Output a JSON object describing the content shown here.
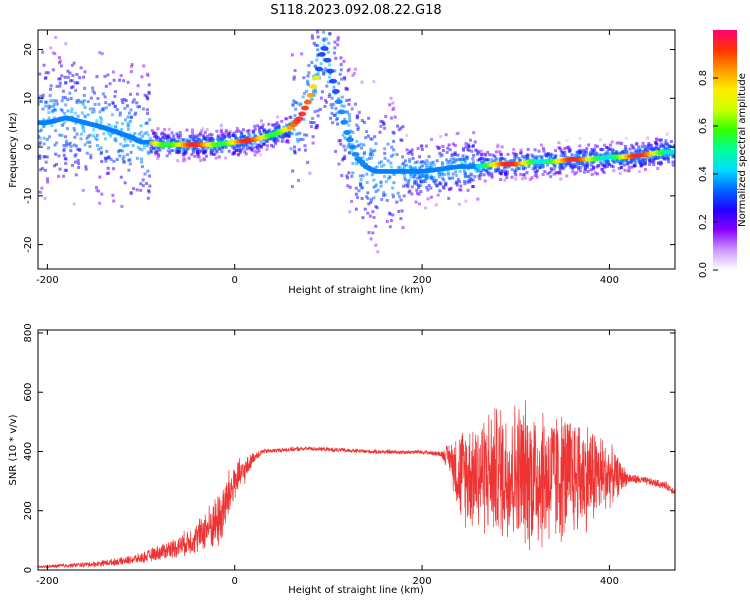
{
  "title": "S118.2023.092.08.22.G18",
  "chart_data": [
    {
      "type": "heatmap",
      "xlabel": "Height of straight line (km)",
      "ylabel": "Frequency (Hz)",
      "xlim": [
        -210,
        470
      ],
      "ylim": [
        -25,
        24
      ],
      "xticks": [
        -200,
        0,
        200,
        400
      ],
      "yticks": [
        -20,
        -10,
        0,
        10,
        20
      ],
      "grid": false,
      "colorbar": {
        "label": "Normalized spectral amplitude",
        "range": [
          0,
          1
        ],
        "ticks": [
          0.0,
          0.2,
          0.4,
          0.6,
          0.8
        ],
        "colors": [
          "#ffffff",
          "#cc99ff",
          "#8800ff",
          "#2200ff",
          "#0066ff",
          "#00ddff",
          "#00ff99",
          "#33ff00",
          "#ccff00",
          "#ffee00",
          "#ff9900",
          "#ff3300",
          "#ff0077"
        ]
      },
      "ridge": {
        "x": [
          -200,
          -180,
          -160,
          -140,
          -125,
          -110,
          -100,
          -90,
          -80,
          -60,
          -40,
          -20,
          0,
          20,
          40,
          60,
          70,
          80,
          90,
          95,
          100,
          110,
          120,
          130,
          140,
          150,
          160,
          170,
          180,
          200,
          220,
          240,
          260,
          280,
          300,
          320,
          340,
          360,
          380,
          400,
          420,
          440,
          460,
          470
        ],
        "y": [
          5,
          6,
          5,
          4,
          3,
          2,
          1,
          1,
          0.5,
          0.5,
          0.5,
          0.5,
          1,
          1.5,
          2.5,
          4,
          6,
          10,
          16,
          21,
          17,
          10,
          3,
          -2,
          -4,
          -5,
          -5,
          -5,
          -5,
          -5,
          -4.5,
          -4,
          -4,
          -3.5,
          -3.5,
          -3,
          -3,
          -2.5,
          -2.5,
          -2,
          -2,
          -1.5,
          -1,
          -1
        ]
      }
    },
    {
      "type": "line",
      "xlabel": "Height of straight line (km)",
      "ylabel": "SNR (10 * v/v)",
      "xlim": [
        -210,
        470
      ],
      "ylim": [
        0,
        810
      ],
      "xticks": [
        -200,
        0,
        200,
        400
      ],
      "yticks": [
        0,
        200,
        400,
        600,
        800
      ],
      "grid": false,
      "color": "#ee3333",
      "series": [
        {
          "x": [
            -210,
            -180,
            -150,
            -120,
            -100,
            -80,
            -60,
            -40,
            -30,
            -20,
            -15,
            0,
            10,
            20,
            30,
            50,
            80,
            110,
            140,
            170,
            200,
            220,
            230,
            240,
            260,
            280,
            300,
            320,
            340,
            360,
            380,
            400,
            420,
            440,
            460,
            470
          ],
          "y": [
            10,
            15,
            20,
            30,
            40,
            60,
            80,
            110,
            140,
            160,
            180,
            300,
            330,
            380,
            400,
            405,
            410,
            405,
            400,
            398,
            398,
            392,
            380,
            320,
            330,
            330,
            330,
            320,
            310,
            320,
            320,
            320,
            310,
            300,
            285,
            265
          ],
          "amplitude": [
            5,
            8,
            10,
            15,
            20,
            30,
            40,
            60,
            80,
            100,
            120,
            80,
            50,
            20,
            10,
            8,
            8,
            8,
            8,
            8,
            8,
            10,
            60,
            180,
            220,
            250,
            270,
            280,
            260,
            230,
            200,
            120,
            20,
            15,
            15,
            15
          ]
        }
      ]
    }
  ]
}
